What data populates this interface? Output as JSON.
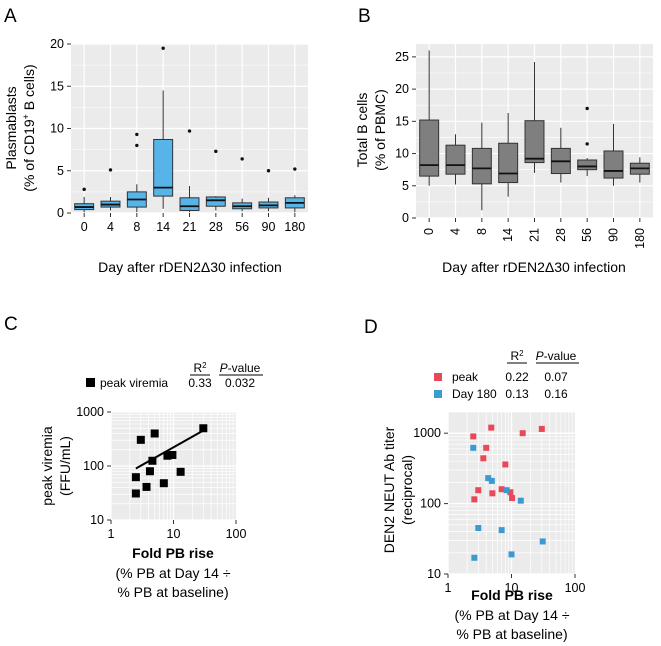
{
  "panels": {
    "A": "A",
    "B": "B",
    "C": "C",
    "D": "D"
  },
  "chart_data": [
    {
      "id": "A",
      "type": "box",
      "categories": [
        "0",
        "4",
        "8",
        "14",
        "21",
        "28",
        "56",
        "90",
        "180"
      ],
      "ylabel_line1": "Plasmablasts",
      "ylabel_line2_pre": "(% of CD19",
      "ylabel_line2_sup": "+",
      "ylabel_line2_post": " B cells)",
      "xlabel": "Day after rDEN2Δ30 infection",
      "ylim": [
        0,
        20
      ],
      "yticks": [
        0,
        5,
        10,
        15,
        20
      ],
      "fill_color": "#56b4e9",
      "boxes": [
        {
          "q1": 0.4,
          "median": 0.7,
          "q3": 1.1,
          "wlo": 0.1,
          "whi": 1.9,
          "outliers": [
            2.8
          ]
        },
        {
          "q1": 0.7,
          "median": 1.0,
          "q3": 1.4,
          "wlo": 0.3,
          "whi": 1.9,
          "outliers": [
            5.1
          ]
        },
        {
          "q1": 0.7,
          "median": 1.6,
          "q3": 2.5,
          "wlo": 0.1,
          "whi": 3.4,
          "outliers": [
            8.0,
            9.3
          ]
        },
        {
          "q1": 2.0,
          "median": 3.0,
          "q3": 8.7,
          "wlo": 0.5,
          "whi": 14.5,
          "outliers": [
            19.5
          ]
        },
        {
          "q1": 0.3,
          "median": 0.8,
          "q3": 1.8,
          "wlo": 0.1,
          "whi": 3.2,
          "outliers": [
            9.7
          ]
        },
        {
          "q1": 0.8,
          "median": 1.5,
          "q3": 1.9,
          "wlo": 0.3,
          "whi": 2.0,
          "outliers": [
            7.3
          ]
        },
        {
          "q1": 0.5,
          "median": 0.8,
          "q3": 1.2,
          "wlo": 0.2,
          "whi": 1.7,
          "outliers": [
            6.4
          ]
        },
        {
          "q1": 0.6,
          "median": 0.9,
          "q3": 1.3,
          "wlo": 0.2,
          "whi": 1.8,
          "outliers": [
            5.0
          ]
        },
        {
          "q1": 0.6,
          "median": 1.2,
          "q3": 1.8,
          "wlo": 0.1,
          "whi": 2.1,
          "outliers": [
            5.2
          ]
        }
      ]
    },
    {
      "id": "B",
      "type": "box",
      "categories": [
        "0",
        "4",
        "8",
        "14",
        "21",
        "28",
        "56",
        "90",
        "180"
      ],
      "ylabel_line1": "Total B cells",
      "ylabel_line2": "(% of PBMC)",
      "xlabel": "Day after rDEN2Δ30 infection",
      "ylim": [
        0,
        27
      ],
      "yticks": [
        0,
        5,
        10,
        15,
        20,
        25
      ],
      "fill_color": "#7f7f7f",
      "boxes": [
        {
          "q1": 6.5,
          "median": 8.2,
          "q3": 15.2,
          "wlo": 5.0,
          "whi": 26.0,
          "outliers": []
        },
        {
          "q1": 6.8,
          "median": 8.2,
          "q3": 11.3,
          "wlo": 5.2,
          "whi": 13.0,
          "outliers": []
        },
        {
          "q1": 5.3,
          "median": 7.7,
          "q3": 10.8,
          "wlo": 1.2,
          "whi": 14.8,
          "outliers": []
        },
        {
          "q1": 5.5,
          "median": 6.9,
          "q3": 11.6,
          "wlo": 3.3,
          "whi": 16.3,
          "outliers": []
        },
        {
          "q1": 8.6,
          "median": 9.2,
          "q3": 15.1,
          "wlo": 7.0,
          "whi": 24.2,
          "outliers": []
        },
        {
          "q1": 6.9,
          "median": 8.8,
          "q3": 10.8,
          "wlo": 5.5,
          "whi": 14.0,
          "outliers": []
        },
        {
          "q1": 7.5,
          "median": 8.0,
          "q3": 9.0,
          "wlo": 6.5,
          "whi": 9.3,
          "outliers": [
            11.5,
            17.0
          ]
        },
        {
          "q1": 6.2,
          "median": 7.3,
          "q3": 10.4,
          "wlo": 5.0,
          "whi": 14.6,
          "outliers": []
        },
        {
          "q1": 6.8,
          "median": 7.7,
          "q3": 8.5,
          "wlo": 5.5,
          "whi": 9.4,
          "outliers": []
        }
      ]
    },
    {
      "id": "C",
      "type": "scatter",
      "ylabel_line1": "peak viremia",
      "ylabel_line2": "(FFU/mL)",
      "xlabel": "Fold PB rise",
      "xlabel_sub1": "(% PB at Day 14 ÷",
      "xlabel_sub2": "% PB at baseline)",
      "xlim": [
        1,
        100
      ],
      "ylim": [
        10,
        1000
      ],
      "xticks": [
        "1",
        "10",
        "100"
      ],
      "yticks": [
        "10",
        "100",
        "1000"
      ],
      "xscale": "log",
      "yscale": "log",
      "stats_header_r2": "R",
      "stats_header_r2_sup": "2",
      "stats_header_p": "P",
      "stats_header_p_suffix": "-value",
      "series": [
        {
          "name": "peak viremia",
          "r2": "0.33",
          "p": "0.032",
          "color": "#000000",
          "points": [
            [
              2.5,
              62
            ],
            [
              2.5,
              31
            ],
            [
              3.0,
              305
            ],
            [
              3.7,
              41
            ],
            [
              4.2,
              80
            ],
            [
              4.6,
              125
            ],
            [
              5.0,
              400
            ],
            [
              7.0,
              48
            ],
            [
              8.0,
              155
            ],
            [
              9.6,
              160
            ],
            [
              13.0,
              78
            ],
            [
              30.0,
              500
            ]
          ],
          "fit_line": [
            [
              2.5,
              90
            ],
            [
              30.0,
              455
            ]
          ]
        }
      ]
    },
    {
      "id": "D",
      "type": "scatter",
      "ylabel_line1": "DEN2 NEUT Ab titer",
      "ylabel_line2": "(reciprocal)",
      "xlabel": "Fold PB rise",
      "xlabel_sub1": "(% PB at Day 14 ÷",
      "xlabel_sub2": "% PB at baseline)",
      "xlim": [
        1,
        100
      ],
      "ylim": [
        10,
        2000
      ],
      "xticks": [
        "1",
        "10",
        "100"
      ],
      "yticks": [
        "10",
        "100",
        "1000"
      ],
      "xscale": "log",
      "yscale": "log",
      "stats_header_r2": "R",
      "stats_header_r2_sup": "2",
      "stats_header_p": "P",
      "stats_header_p_suffix": "-value",
      "series": [
        {
          "name": "peak",
          "r2": "0.22",
          "p": "0.07",
          "color": "#e8495a",
          "points": [
            [
              2.5,
              900
            ],
            [
              2.6,
              115
            ],
            [
              3.0,
              155
            ],
            [
              3.6,
              440
            ],
            [
              4.0,
              620
            ],
            [
              4.8,
              1200
            ],
            [
              5.0,
              140
            ],
            [
              7.0,
              160
            ],
            [
              8.0,
              360
            ],
            [
              9.6,
              145
            ],
            [
              10.2,
              120
            ],
            [
              15.0,
              1000
            ],
            [
              30.0,
              1150
            ]
          ]
        },
        {
          "name": "Day 180",
          "r2": "0.13",
          "p": "0.16",
          "color": "#3d9ad1",
          "points": [
            [
              2.5,
              620
            ],
            [
              2.6,
              17
            ],
            [
              3.0,
              45
            ],
            [
              4.3,
              230
            ],
            [
              4.9,
              210
            ],
            [
              7.0,
              42
            ],
            [
              8.4,
              155
            ],
            [
              10.0,
              19
            ],
            [
              14.0,
              110
            ],
            [
              31.0,
              29
            ]
          ]
        }
      ]
    }
  ]
}
